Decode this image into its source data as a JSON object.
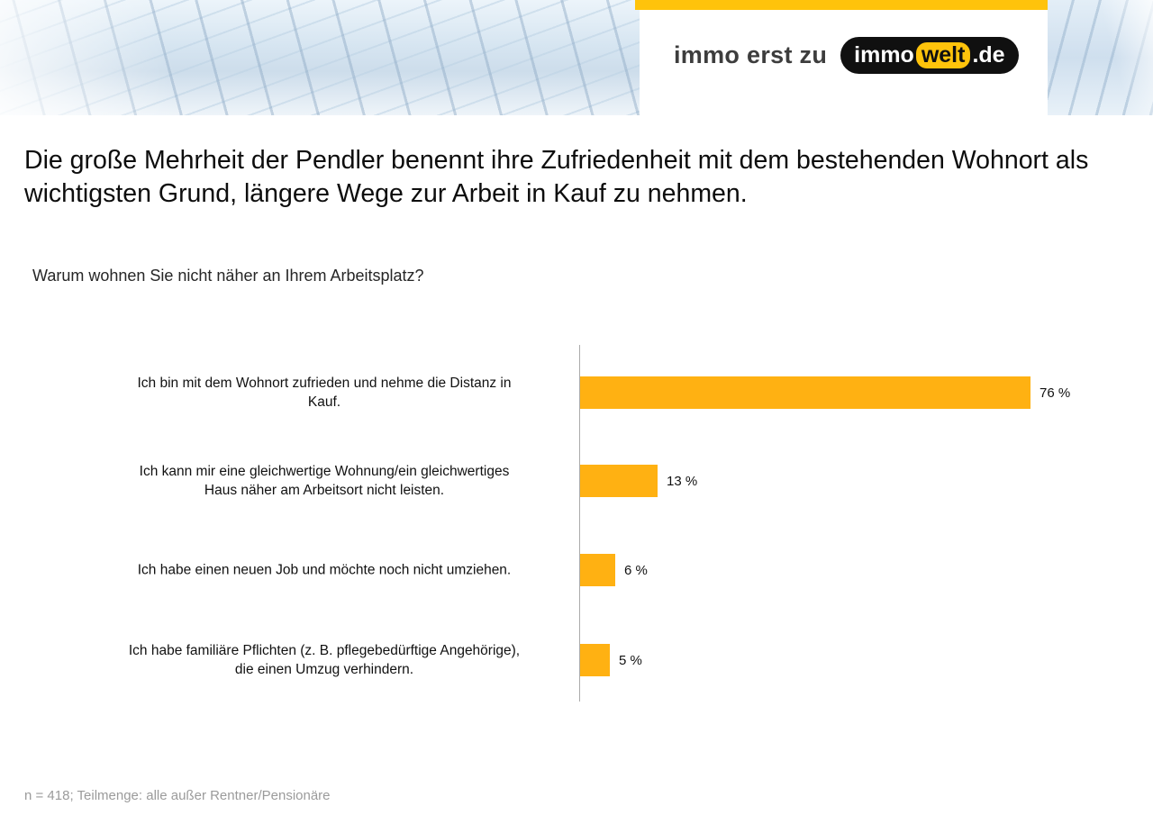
{
  "header": {
    "tagline": "immo erst zu",
    "logo": {
      "part1": "immo",
      "part2": "welt",
      "part3": ".de"
    }
  },
  "headline": "Die große Mehrheit der Pendler benennt ihre Zufriedenheit mit dem bestehenden Wohnort als wichtigsten Grund, längere Wege zur Arbeit in Kauf zu nehmen.",
  "question": "Warum wohnen Sie nicht näher an Ihrem Arbeitsplatz?",
  "chart_data": {
    "type": "bar",
    "orientation": "horizontal",
    "title": "Warum wohnen Sie nicht näher an Ihrem Arbeitsplatz?",
    "categories": [
      "Ich bin mit dem Wohnort zufrieden und nehme die Distanz in\nKauf.",
      "Ich kann mir eine gleichwertige Wohnung/ein gleichwertiges\nHaus näher am Arbeitsort nicht leisten.",
      "Ich habe einen neuen Job und möchte noch nicht umziehen.",
      "Ich habe familiäre Pflichten (z. B. pflegebedürftige Angehörige),\ndie einen Umzug verhindern."
    ],
    "values": [
      76,
      13,
      6,
      5
    ],
    "value_labels": [
      "76 %",
      "13 %",
      "6 %",
      "5 %"
    ],
    "unit": "%",
    "xlim": [
      0,
      100
    ],
    "grid": false,
    "legend": false,
    "bar_color": "#FFB112"
  },
  "footnote": "n = 418; Teilmenge: alle außer Rentner/Pensionäre",
  "colors": {
    "bar": "#FFB112",
    "accent_yellow": "#FFC30B",
    "logo_black": "#101010",
    "axis_gray": "#ababab",
    "footnote_gray": "#9b9b9b"
  }
}
